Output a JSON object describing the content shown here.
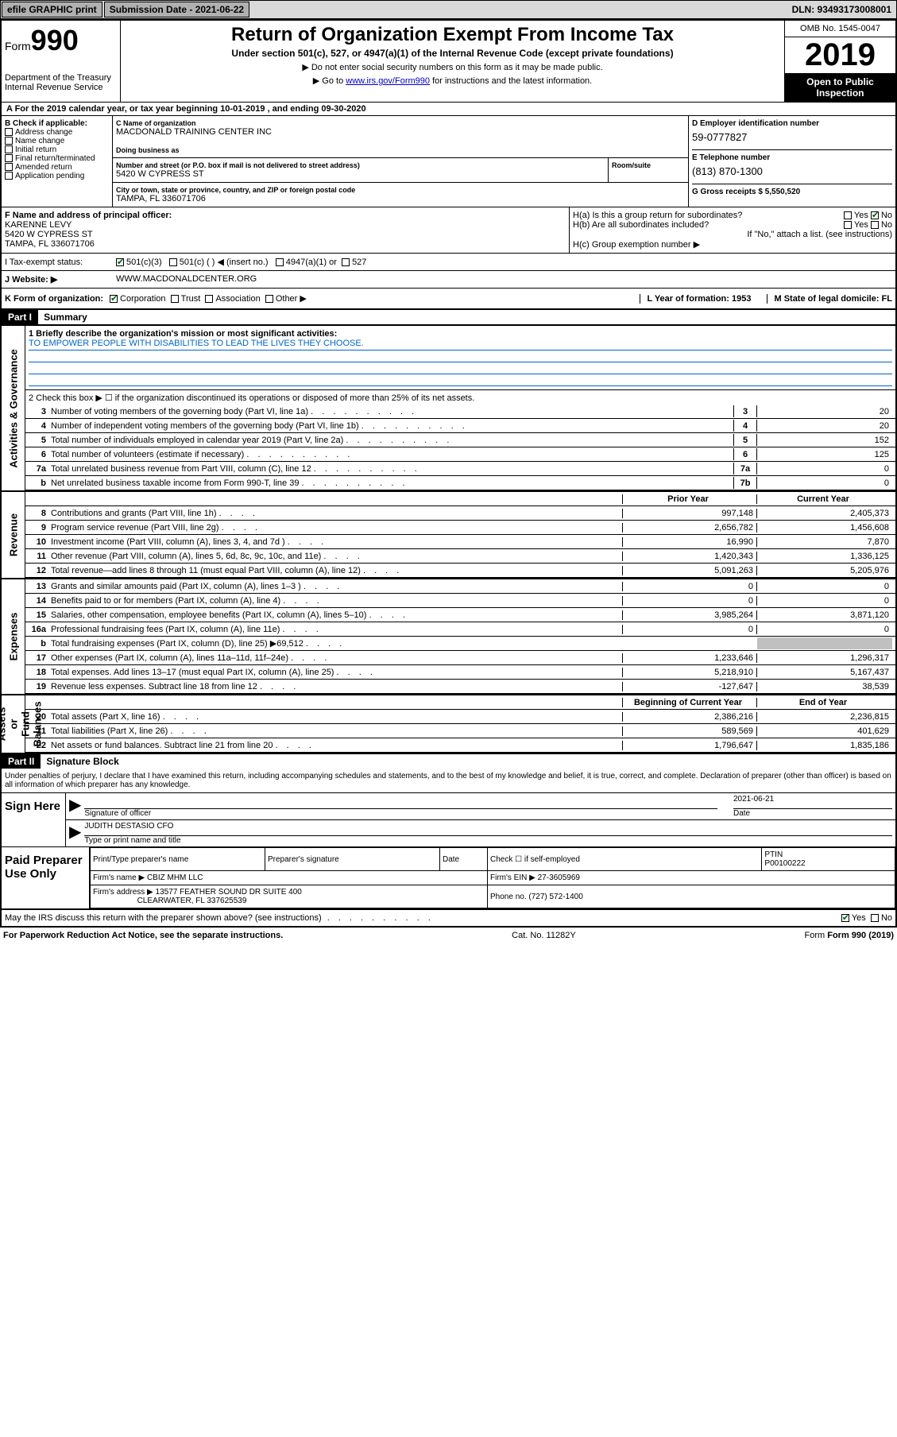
{
  "topbar": {
    "efile": "efile GRAPHIC print",
    "submission_label": "Submission Date - 2021-06-22",
    "dln": "DLN: 93493173008001"
  },
  "header": {
    "form_label": "Form",
    "form_number": "990",
    "dept": "Department of the Treasury\nInternal Revenue Service",
    "title": "Return of Organization Exempt From Income Tax",
    "subtitle": "Under section 501(c), 527, or 4947(a)(1) of the Internal Revenue Code (except private foundations)",
    "note1": "▶ Do not enter social security numbers on this form as it may be made public.",
    "note2_pre": "▶ Go to ",
    "note2_link": "www.irs.gov/Form990",
    "note2_post": " for instructions and the latest information.",
    "omb": "OMB No. 1545-0047",
    "year": "2019",
    "inspect": "Open to Public Inspection"
  },
  "period": "A For the 2019 calendar year, or tax year beginning 10-01-2019    , and ending 09-30-2020",
  "section_b": {
    "label": "B Check if applicable:",
    "opts": [
      "Address change",
      "Name change",
      "Initial return",
      "Final return/terminated",
      "Amended return",
      "Application pending"
    ]
  },
  "section_c": {
    "name_label": "C Name of organization",
    "name_val": "MACDONALD TRAINING CENTER INC",
    "dba_label": "Doing business as",
    "street_label": "Number and street (or P.O. box if mail is not delivered to street address)",
    "room_label": "Room/suite",
    "street_val": "5420 W CYPRESS ST",
    "city_label": "City or town, state or province, country, and ZIP or foreign postal code",
    "city_val": "TAMPA, FL  336071706"
  },
  "section_d": {
    "label": "D Employer identification number",
    "val": "59-0777827",
    "phone_label": "E Telephone number",
    "phone_val": "(813) 870-1300",
    "gross_label": "G Gross receipts $ 5,550,520"
  },
  "section_f": {
    "label": "F Name and address of principal officer:",
    "name": "KARENNE LEVY",
    "addr1": "5420 W CYPRESS ST",
    "addr2": "TAMPA, FL  336071706"
  },
  "section_h": {
    "ha": "H(a)  Is this a group return for subordinates?",
    "hb": "H(b)  Are all subordinates included?",
    "hb_note": "If \"No,\" attach a list. (see instructions)",
    "hc": "H(c)  Group exemption number ▶",
    "yes": "Yes",
    "no": "No"
  },
  "tax_status": {
    "label": "I    Tax-exempt status:",
    "opt1": "501(c)(3)",
    "opt2": "501(c) (   ) ◀ (insert no.)",
    "opt3": "4947(a)(1) or",
    "opt4": "527"
  },
  "website": {
    "label": "J   Website: ▶",
    "val": "WWW.MACDONALDCENTER.ORG"
  },
  "k_row": {
    "k_label": "K Form of organization:",
    "opts": [
      "Corporation",
      "Trust",
      "Association",
      "Other ▶"
    ],
    "l_label": "L Year of formation: 1953",
    "m_label": "M State of legal domicile: FL"
  },
  "part1": {
    "header": "Part I",
    "title": "Summary",
    "line1_label": "1   Briefly describe the organization's mission or most significant activities:",
    "mission": "TO EMPOWER PEOPLE WITH DISABILITIES TO LEAD THE LIVES THEY CHOOSE.",
    "line2": "2   Check this box ▶ ☐  if the organization discontinued its operations or disposed of more than 25% of its net assets.",
    "sides": {
      "gov": "Activities & Governance",
      "rev": "Revenue",
      "exp": "Expenses",
      "net": "Net Assets or\nFund Balances"
    },
    "gov_lines": [
      {
        "n": "3",
        "t": "Number of voting members of the governing body (Part VI, line 1a)",
        "c": "3",
        "v": "20"
      },
      {
        "n": "4",
        "t": "Number of independent voting members of the governing body (Part VI, line 1b)",
        "c": "4",
        "v": "20"
      },
      {
        "n": "5",
        "t": "Total number of individuals employed in calendar year 2019 (Part V, line 2a)",
        "c": "5",
        "v": "152"
      },
      {
        "n": "6",
        "t": "Total number of volunteers (estimate if necessary)",
        "c": "6",
        "v": "125"
      },
      {
        "n": "7a",
        "t": "Total unrelated business revenue from Part VIII, column (C), line 12",
        "c": "7a",
        "v": "0"
      },
      {
        "n": "b",
        "t": "Net unrelated business taxable income from Form 990-T, line 39",
        "c": "7b",
        "v": "0"
      }
    ],
    "col_headers": {
      "prior": "Prior Year",
      "current": "Current Year",
      "begin": "Beginning of Current Year",
      "end": "End of Year"
    },
    "rev_lines": [
      {
        "n": "8",
        "t": "Contributions and grants (Part VIII, line 1h)",
        "p": "997,148",
        "c": "2,405,373"
      },
      {
        "n": "9",
        "t": "Program service revenue (Part VIII, line 2g)",
        "p": "2,656,782",
        "c": "1,456,608"
      },
      {
        "n": "10",
        "t": "Investment income (Part VIII, column (A), lines 3, 4, and 7d )",
        "p": "16,990",
        "c": "7,870"
      },
      {
        "n": "11",
        "t": "Other revenue (Part VIII, column (A), lines 5, 6d, 8c, 9c, 10c, and 11e)",
        "p": "1,420,343",
        "c": "1,336,125"
      },
      {
        "n": "12",
        "t": "Total revenue—add lines 8 through 11 (must equal Part VIII, column (A), line 12)",
        "p": "5,091,263",
        "c": "5,205,976"
      }
    ],
    "exp_lines": [
      {
        "n": "13",
        "t": "Grants and similar amounts paid (Part IX, column (A), lines 1–3 )",
        "p": "0",
        "c": "0"
      },
      {
        "n": "14",
        "t": "Benefits paid to or for members (Part IX, column (A), line 4)",
        "p": "0",
        "c": "0"
      },
      {
        "n": "15",
        "t": "Salaries, other compensation, employee benefits (Part IX, column (A), lines 5–10)",
        "p": "3,985,264",
        "c": "3,871,120"
      },
      {
        "n": "16a",
        "t": "Professional fundraising fees (Part IX, column (A), line 11e)",
        "p": "0",
        "c": "0"
      },
      {
        "n": "b",
        "t": "Total fundraising expenses (Part IX, column (D), line 25) ▶69,512",
        "p": "",
        "c": "",
        "shaded": true
      },
      {
        "n": "17",
        "t": "Other expenses (Part IX, column (A), lines 11a–11d, 11f–24e)",
        "p": "1,233,646",
        "c": "1,296,317"
      },
      {
        "n": "18",
        "t": "Total expenses. Add lines 13–17 (must equal Part IX, column (A), line 25)",
        "p": "5,218,910",
        "c": "5,167,437"
      },
      {
        "n": "19",
        "t": "Revenue less expenses. Subtract line 18 from line 12",
        "p": "-127,647",
        "c": "38,539"
      }
    ],
    "net_lines": [
      {
        "n": "20",
        "t": "Total assets (Part X, line 16)",
        "p": "2,386,216",
        "c": "2,236,815"
      },
      {
        "n": "21",
        "t": "Total liabilities (Part X, line 26)",
        "p": "589,569",
        "c": "401,629"
      },
      {
        "n": "22",
        "t": "Net assets or fund balances. Subtract line 21 from line 20",
        "p": "1,796,647",
        "c": "1,835,186"
      }
    ]
  },
  "part2": {
    "header": "Part II",
    "title": "Signature Block",
    "declare": "Under penalties of perjury, I declare that I have examined this return, including accompanying schedules and statements, and to the best of my knowledge and belief, it is true, correct, and complete. Declaration of preparer (other than officer) is based on all information of which preparer has any knowledge.",
    "sign_here": "Sign Here",
    "sig_officer": "Signature of officer",
    "sig_date": "2021-06-21",
    "date_label": "Date",
    "officer_name": "JUDITH DESTASIO CFO",
    "type_label": "Type or print name and title",
    "paid_label": "Paid Preparer Use Only",
    "prep_name_label": "Print/Type preparer's name",
    "prep_sig_label": "Preparer's signature",
    "prep_date_label": "Date",
    "check_label": "Check ☐ if self-employed",
    "ptin_label": "PTIN",
    "ptin_val": "P00100222",
    "firm_name_label": "Firm's name    ▶",
    "firm_name": "CBIZ MHM LLC",
    "firm_ein_label": "Firm's EIN ▶",
    "firm_ein": "27-3605969",
    "firm_addr_label": "Firm's address ▶",
    "firm_addr1": "13577 FEATHER SOUND DR SUITE 400",
    "firm_addr2": "CLEARWATER, FL  337625539",
    "phone_label": "Phone no. (727) 572-1400",
    "discuss": "May the IRS discuss this return with the preparer shown above? (see instructions)",
    "yes": "Yes",
    "no": "No"
  },
  "footer": {
    "paperwork": "For Paperwork Reduction Act Notice, see the separate instructions.",
    "cat": "Cat. No. 11282Y",
    "form": "Form 990 (2019)"
  }
}
